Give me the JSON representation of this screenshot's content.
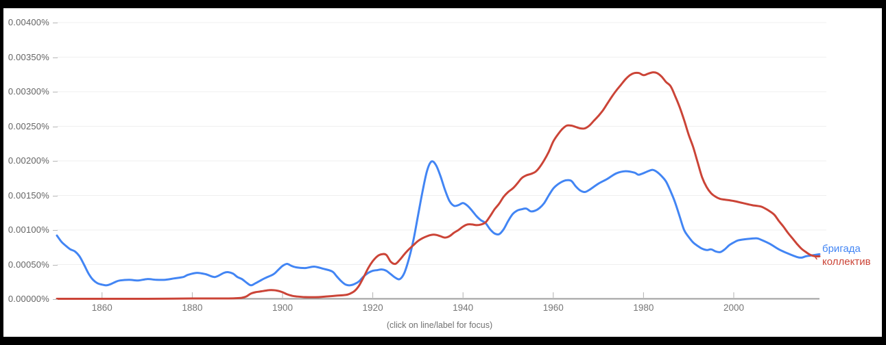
{
  "footnote": "(click on line/label for focus)",
  "label_pointer": "‹",
  "chart_data": {
    "type": "line",
    "title": "",
    "xlabel": "",
    "ylabel": "",
    "unit": "%",
    "xlim": [
      1850,
      2019
    ],
    "ylim": [
      0,
      0.004
    ],
    "grid": "horizontal-faint",
    "legend_position": "right-end-of-lines",
    "x_ticks": [
      1860,
      1880,
      1900,
      1920,
      1940,
      1960,
      1980,
      2000
    ],
    "y_ticks": [
      {
        "value": 0.0,
        "label": "0.00000%"
      },
      {
        "value": 0.0005,
        "label": "0.00050%"
      },
      {
        "value": 0.001,
        "label": "0.00100%"
      },
      {
        "value": 0.0015,
        "label": "0.00150%"
      },
      {
        "value": 0.002,
        "label": "0.00200%"
      },
      {
        "value": 0.0025,
        "label": "0.00250%"
      },
      {
        "value": 0.003,
        "label": "0.00300%"
      },
      {
        "value": 0.0035,
        "label": "0.00350%"
      },
      {
        "value": 0.004,
        "label": "0.00400%"
      }
    ],
    "axis_color": "#9e9e9e",
    "gridline_color": "#efefef",
    "series": [
      {
        "name": "бригада",
        "key": "brigada",
        "color": "#4285f4",
        "points": [
          [
            1850,
            0.00092
          ],
          [
            1851,
            0.00083
          ],
          [
            1852,
            0.00077
          ],
          [
            1853,
            0.00072
          ],
          [
            1854,
            0.00069
          ],
          [
            1855,
            0.00062
          ],
          [
            1856,
            0.0005
          ],
          [
            1857,
            0.00037
          ],
          [
            1858,
            0.00028
          ],
          [
            1859,
            0.00023
          ],
          [
            1860,
            0.00021
          ],
          [
            1861,
            0.0002
          ],
          [
            1862,
            0.00022
          ],
          [
            1863,
            0.00025
          ],
          [
            1864,
            0.00027
          ],
          [
            1866,
            0.00028
          ],
          [
            1868,
            0.00027
          ],
          [
            1870,
            0.00029
          ],
          [
            1872,
            0.00028
          ],
          [
            1874,
            0.00028
          ],
          [
            1876,
            0.0003
          ],
          [
            1878,
            0.00032
          ],
          [
            1879,
            0.00035
          ],
          [
            1881,
            0.00038
          ],
          [
            1883,
            0.00036
          ],
          [
            1885,
            0.00032
          ],
          [
            1887,
            0.00038
          ],
          [
            1888,
            0.00039
          ],
          [
            1889,
            0.00037
          ],
          [
            1890,
            0.00032
          ],
          [
            1891,
            0.00029
          ],
          [
            1892,
            0.00024
          ],
          [
            1893,
            0.0002
          ],
          [
            1894,
            0.00023
          ],
          [
            1896,
            0.0003
          ],
          [
            1898,
            0.00036
          ],
          [
            1899,
            0.00042
          ],
          [
            1900,
            0.00048
          ],
          [
            1901,
            0.00051
          ],
          [
            1902,
            0.00048
          ],
          [
            1903,
            0.00046
          ],
          [
            1905,
            0.00045
          ],
          [
            1907,
            0.00047
          ],
          [
            1909,
            0.00044
          ],
          [
            1911,
            0.0004
          ],
          [
            1912,
            0.00033
          ],
          [
            1913,
            0.00026
          ],
          [
            1914,
            0.00021
          ],
          [
            1915,
            0.0002
          ],
          [
            1916,
            0.00022
          ],
          [
            1917,
            0.00026
          ],
          [
            1918,
            0.00033
          ],
          [
            1919,
            0.00038
          ],
          [
            1920,
            0.00041
          ],
          [
            1921,
            0.00042
          ],
          [
            1922,
            0.00043
          ],
          [
            1923,
            0.00041
          ],
          [
            1924,
            0.00036
          ],
          [
            1925,
            0.00031
          ],
          [
            1926,
            0.00029
          ],
          [
            1927,
            0.00038
          ],
          [
            1928,
            0.00058
          ],
          [
            1929,
            0.00085
          ],
          [
            1930,
            0.0012
          ],
          [
            1931,
            0.00155
          ],
          [
            1932,
            0.00185
          ],
          [
            1933,
            0.00199
          ],
          [
            1934,
            0.00194
          ],
          [
            1935,
            0.00178
          ],
          [
            1936,
            0.00158
          ],
          [
            1937,
            0.00142
          ],
          [
            1938,
            0.00135
          ],
          [
            1939,
            0.00136
          ],
          [
            1940,
            0.00139
          ],
          [
            1941,
            0.00135
          ],
          [
            1942,
            0.00128
          ],
          [
            1943,
            0.0012
          ],
          [
            1944,
            0.00114
          ],
          [
            1945,
            0.0011
          ],
          [
            1946,
            0.00101
          ],
          [
            1947,
            0.00095
          ],
          [
            1948,
            0.00094
          ],
          [
            1949,
            0.00101
          ],
          [
            1950,
            0.00113
          ],
          [
            1951,
            0.00123
          ],
          [
            1952,
            0.00128
          ],
          [
            1953,
            0.0013
          ],
          [
            1954,
            0.00131
          ],
          [
            1955,
            0.00127
          ],
          [
            1956,
            0.00128
          ],
          [
            1957,
            0.00132
          ],
          [
            1958,
            0.00139
          ],
          [
            1959,
            0.0015
          ],
          [
            1960,
            0.0016
          ],
          [
            1961,
            0.00166
          ],
          [
            1962,
            0.0017
          ],
          [
            1963,
            0.00172
          ],
          [
            1964,
            0.00171
          ],
          [
            1965,
            0.00163
          ],
          [
            1966,
            0.00157
          ],
          [
            1967,
            0.00155
          ],
          [
            1968,
            0.00158
          ],
          [
            1970,
            0.00167
          ],
          [
            1972,
            0.00174
          ],
          [
            1974,
            0.00182
          ],
          [
            1976,
            0.00185
          ],
          [
            1978,
            0.00183
          ],
          [
            1979,
            0.0018
          ],
          [
            1981,
            0.00185
          ],
          [
            1982,
            0.00187
          ],
          [
            1983,
            0.00184
          ],
          [
            1984,
            0.00178
          ],
          [
            1985,
            0.0017
          ],
          [
            1986,
            0.00156
          ],
          [
            1987,
            0.0014
          ],
          [
            1988,
            0.0012
          ],
          [
            1989,
            0.001
          ],
          [
            1990,
            0.0009
          ],
          [
            1991,
            0.00082
          ],
          [
            1992,
            0.00077
          ],
          [
            1993,
            0.00073
          ],
          [
            1994,
            0.00071
          ],
          [
            1995,
            0.00072
          ],
          [
            1996,
            0.00069
          ],
          [
            1997,
            0.00068
          ],
          [
            1998,
            0.00072
          ],
          [
            1999,
            0.00078
          ],
          [
            2000,
            0.00082
          ],
          [
            2001,
            0.00085
          ],
          [
            2003,
            0.00087
          ],
          [
            2005,
            0.00088
          ],
          [
            2006,
            0.00086
          ],
          [
            2008,
            0.0008
          ],
          [
            2010,
            0.00072
          ],
          [
            2012,
            0.00066
          ],
          [
            2014,
            0.00061
          ],
          [
            2015,
            0.0006
          ],
          [
            2016,
            0.00062
          ],
          [
            2017,
            0.00063
          ],
          [
            2019,
            0.00065
          ]
        ]
      },
      {
        "name": "коллектив",
        "key": "kollektiv",
        "color": "#cb4437",
        "points": [
          [
            1850,
            5e-06
          ],
          [
            1860,
            5e-06
          ],
          [
            1870,
            5e-06
          ],
          [
            1880,
            1e-05
          ],
          [
            1888,
            1e-05
          ],
          [
            1890,
            1.5e-05
          ],
          [
            1891,
            2e-05
          ],
          [
            1892,
            4e-05
          ],
          [
            1893,
            8e-05
          ],
          [
            1894,
            0.0001
          ],
          [
            1895,
            0.00011
          ],
          [
            1897,
            0.00013
          ],
          [
            1898,
            0.00013
          ],
          [
            1899,
            0.00012
          ],
          [
            1900,
            0.0001
          ],
          [
            1901,
            7e-05
          ],
          [
            1902,
            5e-05
          ],
          [
            1903,
            4e-05
          ],
          [
            1905,
            3e-05
          ],
          [
            1908,
            3e-05
          ],
          [
            1910,
            4e-05
          ],
          [
            1912,
            5e-05
          ],
          [
            1914,
            6e-05
          ],
          [
            1915,
            8e-05
          ],
          [
            1916,
            0.00012
          ],
          [
            1917,
            0.0002
          ],
          [
            1918,
            0.00032
          ],
          [
            1919,
            0.00045
          ],
          [
            1920,
            0.00055
          ],
          [
            1921,
            0.00062
          ],
          [
            1922,
            0.00065
          ],
          [
            1923,
            0.00064
          ],
          [
            1924,
            0.00054
          ],
          [
            1925,
            0.00051
          ],
          [
            1926,
            0.00057
          ],
          [
            1927,
            0.00065
          ],
          [
            1928,
            0.00072
          ],
          [
            1929,
            0.00078
          ],
          [
            1930,
            0.00084
          ],
          [
            1931,
            0.00088
          ],
          [
            1932,
            0.00091
          ],
          [
            1933,
            0.00093
          ],
          [
            1934,
            0.00093
          ],
          [
            1935,
            0.00091
          ],
          [
            1936,
            0.00089
          ],
          [
            1937,
            0.00091
          ],
          [
            1938,
            0.00096
          ],
          [
            1939,
            0.001
          ],
          [
            1940,
            0.00105
          ],
          [
            1941,
            0.00108
          ],
          [
            1942,
            0.00108
          ],
          [
            1943,
            0.00107
          ],
          [
            1944,
            0.00108
          ],
          [
            1945,
            0.00111
          ],
          [
            1946,
            0.0012
          ],
          [
            1947,
            0.0013
          ],
          [
            1948,
            0.00138
          ],
          [
            1949,
            0.00148
          ],
          [
            1950,
            0.00155
          ],
          [
            1951,
            0.0016
          ],
          [
            1952,
            0.00167
          ],
          [
            1953,
            0.00175
          ],
          [
            1954,
            0.00179
          ],
          [
            1955,
            0.00181
          ],
          [
            1956,
            0.00184
          ],
          [
            1957,
            0.00191
          ],
          [
            1958,
            0.00201
          ],
          [
            1959,
            0.00213
          ],
          [
            1960,
            0.00228
          ],
          [
            1961,
            0.00238
          ],
          [
            1962,
            0.00246
          ],
          [
            1963,
            0.00251
          ],
          [
            1964,
            0.00251
          ],
          [
            1965,
            0.00249
          ],
          [
            1966,
            0.00247
          ],
          [
            1967,
            0.00247
          ],
          [
            1968,
            0.00251
          ],
          [
            1969,
            0.00258
          ],
          [
            1970,
            0.00265
          ],
          [
            1971,
            0.00273
          ],
          [
            1972,
            0.00283
          ],
          [
            1973,
            0.00293
          ],
          [
            1974,
            0.00302
          ],
          [
            1975,
            0.0031
          ],
          [
            1976,
            0.00318
          ],
          [
            1977,
            0.00324
          ],
          [
            1978,
            0.00327
          ],
          [
            1979,
            0.00327
          ],
          [
            1980,
            0.00324
          ],
          [
            1981,
            0.00326
          ],
          [
            1982,
            0.00328
          ],
          [
            1983,
            0.00327
          ],
          [
            1984,
            0.00322
          ],
          [
            1985,
            0.00314
          ],
          [
            1986,
            0.00308
          ],
          [
            1987,
            0.00294
          ],
          [
            1988,
            0.00278
          ],
          [
            1989,
            0.00259
          ],
          [
            1990,
            0.00238
          ],
          [
            1991,
            0.0022
          ],
          [
            1992,
            0.00198
          ],
          [
            1993,
            0.00176
          ],
          [
            1994,
            0.00162
          ],
          [
            1995,
            0.00153
          ],
          [
            1996,
            0.00148
          ],
          [
            1997,
            0.00145
          ],
          [
            1998,
            0.00144
          ],
          [
            2000,
            0.00142
          ],
          [
            2002,
            0.00139
          ],
          [
            2004,
            0.00136
          ],
          [
            2005,
            0.00135
          ],
          [
            2006,
            0.00134
          ],
          [
            2007,
            0.00131
          ],
          [
            2008,
            0.00127
          ],
          [
            2009,
            0.00122
          ],
          [
            2010,
            0.00113
          ],
          [
            2011,
            0.00105
          ],
          [
            2012,
            0.00096
          ],
          [
            2013,
            0.00088
          ],
          [
            2014,
            0.0008
          ],
          [
            2015,
            0.00073
          ],
          [
            2016,
            0.00068
          ],
          [
            2017,
            0.00064
          ],
          [
            2018,
            0.00062
          ],
          [
            2019,
            0.00062
          ]
        ]
      }
    ]
  }
}
